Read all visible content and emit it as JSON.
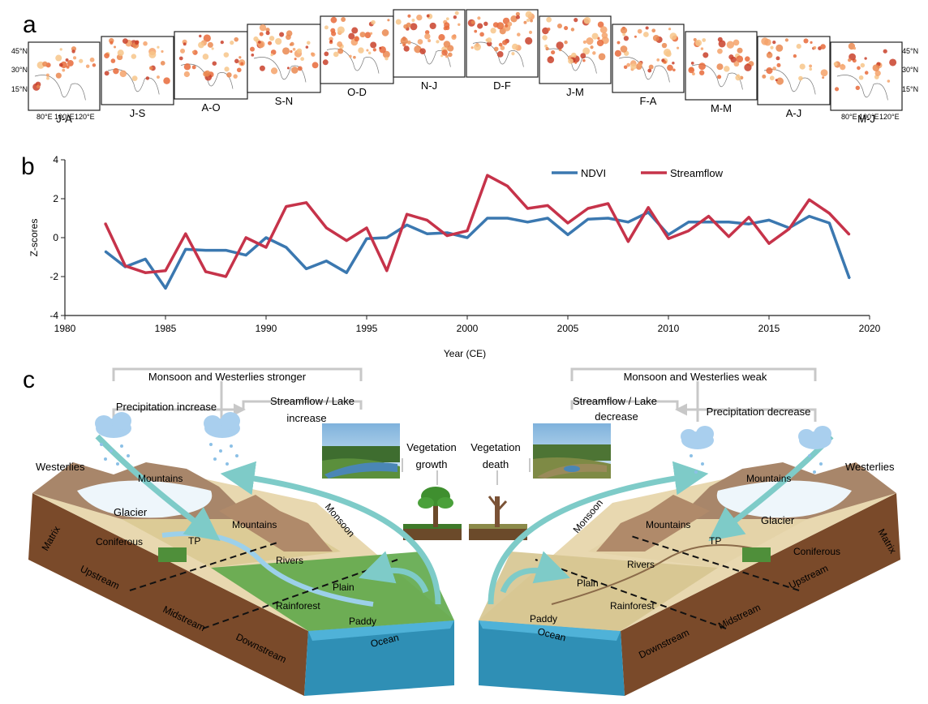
{
  "panels": {
    "a": "a",
    "b": "b",
    "c": "c"
  },
  "maps": {
    "labels": [
      "J-A",
      "J-S",
      "A-O",
      "S-N",
      "O-D",
      "N-J",
      "D-F",
      "J-M",
      "F-A",
      "M-M",
      "A-J",
      "M-J"
    ],
    "lat_ticks": [
      "45°N",
      "30°N",
      "15°N"
    ],
    "lon_ticks": [
      "80°E",
      "100°E",
      "120°E"
    ],
    "lon_ticks_last": [
      "80°E",
      "100°E",
      "120°E"
    ]
  },
  "chart_data": {
    "type": "line",
    "xlabel": "Year (CE)",
    "ylabel": "Z-scores",
    "xlim": [
      1980,
      2020
    ],
    "ylim": [
      -4,
      4
    ],
    "xticks": [
      1980,
      1985,
      1990,
      1995,
      2000,
      2005,
      2010,
      2015,
      2020
    ],
    "yticks": [
      -4,
      -2,
      0,
      2,
      4
    ],
    "legend_position": "top-right",
    "x": [
      1982,
      1983,
      1984,
      1985,
      1986,
      1987,
      1988,
      1989,
      1990,
      1991,
      1992,
      1993,
      1994,
      1995,
      1996,
      1997,
      1998,
      1999,
      2000,
      2001,
      2002,
      2003,
      2004,
      2005,
      2006,
      2007,
      2008,
      2009,
      2010,
      2011,
      2012,
      2013,
      2014,
      2015,
      2016,
      2017,
      2018,
      2019
    ],
    "series": [
      {
        "name": "NDVI",
        "color": "#3b78b0",
        "values": [
          -0.7,
          -1.5,
          -1.1,
          -2.6,
          -0.6,
          -0.65,
          -0.65,
          -0.9,
          0.0,
          -0.5,
          -1.6,
          -1.2,
          -1.8,
          -0.05,
          0.0,
          0.65,
          0.2,
          0.25,
          0.0,
          1.0,
          1.0,
          0.8,
          1.0,
          0.15,
          0.95,
          1.0,
          0.8,
          1.3,
          0.15,
          0.8,
          0.8,
          0.8,
          0.7,
          0.9,
          0.5,
          1.1,
          0.75,
          -2.1
        ]
      },
      {
        "name": "Streamflow",
        "color": "#c6334a",
        "values": [
          0.75,
          -1.45,
          -1.8,
          -1.7,
          0.2,
          -1.75,
          -2.0,
          0.0,
          -0.5,
          1.6,
          1.8,
          0.5,
          -0.15,
          0.5,
          -1.7,
          1.2,
          0.9,
          0.1,
          0.35,
          3.2,
          2.65,
          1.5,
          1.65,
          0.75,
          1.5,
          1.75,
          -0.2,
          1.55,
          -0.05,
          0.35,
          1.1,
          0.05,
          1.05,
          -0.3,
          0.45,
          1.95,
          1.25,
          0.15
        ]
      }
    ]
  },
  "diagram": {
    "left": {
      "title": "Monsoon and Westerlies stronger",
      "precip": "Precipitation increase",
      "streamflow_line1": "Streamflow / Lake",
      "streamflow_line2": "increase",
      "veg_line1": "Vegetation",
      "veg_line2": "growth",
      "westerlies": "Westerlies",
      "mountains_a": "Mountains",
      "mountains_b": "Mountains",
      "glacier": "Glacier",
      "tp": "TP",
      "coniferous": "Coniferous",
      "rivers": "Rivers",
      "plain": "Plain",
      "rainforest": "Rainforest",
      "paddy": "Paddy",
      "ocean": "Ocean",
      "monsoon": "Monsoon",
      "matrix": "Matrix",
      "upstream": "Upstream",
      "midstream": "Midstream",
      "downstream": "Downstream"
    },
    "right": {
      "title": "Monsoon and Westerlies weak",
      "precip": "Precipitation decrease",
      "streamflow_line1": "Streamflow / Lake",
      "streamflow_line2": "decrease",
      "veg_line1": "Vegetation",
      "veg_line2": "death",
      "westerlies": "Westerlies",
      "mountains_a": "Mountains",
      "mountains_b": "Mountains",
      "glacier": "Glacier",
      "tp": "TP",
      "coniferous": "Coniferous",
      "rivers": "Rivers",
      "plain": "Plain",
      "rainforest": "Rainforest",
      "paddy": "Paddy",
      "ocean": "Ocean",
      "monsoon": "Monsoon",
      "matrix": "Matrix",
      "upstream": "Upstream",
      "midstream": "Midstream",
      "downstream": "Downstream"
    }
  }
}
